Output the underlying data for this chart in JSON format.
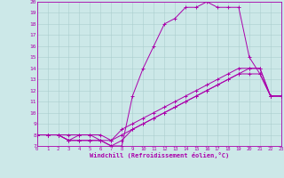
{
  "xlabel": "Windchill (Refroidissement éolien,°C)",
  "background_color": "#cce8e8",
  "line_color": "#aa00aa",
  "grid_color": "#aacece",
  "xmin": 0,
  "xmax": 23,
  "ymin": 7,
  "ymax": 20,
  "series1": {
    "x": [
      0,
      1,
      2,
      3,
      4,
      5,
      6,
      7,
      8,
      9,
      10,
      11,
      12,
      13,
      14,
      15,
      16,
      17,
      18,
      19,
      20,
      21,
      22,
      23
    ],
    "y": [
      8,
      8,
      8,
      7.5,
      7.5,
      7.5,
      7.5,
      7,
      7,
      11.5,
      14,
      16,
      18,
      18.5,
      19.5,
      19.5,
      20,
      19.5,
      19.5,
      19.5,
      15,
      13.5,
      11.5,
      11.5
    ]
  },
  "series2": {
    "x": [
      0,
      1,
      2,
      3,
      4,
      5,
      6,
      7,
      8,
      9,
      10,
      11,
      12,
      13,
      14,
      15,
      16,
      17,
      18,
      19,
      20,
      21,
      22,
      23
    ],
    "y": [
      8,
      8,
      8,
      7.5,
      8,
      8,
      8,
      7.5,
      8,
      8.5,
      9,
      9.5,
      10,
      10.5,
      11,
      11.5,
      12,
      12.5,
      13,
      13.5,
      13.5,
      13.5,
      11.5,
      11.5
    ]
  },
  "series3": {
    "x": [
      0,
      1,
      2,
      3,
      4,
      5,
      6,
      7,
      8,
      9,
      10,
      11,
      12,
      13,
      14,
      15,
      16,
      17,
      18,
      19,
      20,
      21,
      22,
      23
    ],
    "y": [
      8,
      8,
      8,
      7.5,
      7.5,
      7.5,
      7.5,
      7.5,
      8.5,
      9,
      9.5,
      10,
      10.5,
      11,
      11.5,
      12,
      12.5,
      13,
      13.5,
      14,
      14,
      14,
      11.5,
      11.5
    ]
  },
  "series4": {
    "x": [
      0,
      1,
      2,
      3,
      4,
      5,
      6,
      7,
      8,
      9,
      10,
      11,
      12,
      13,
      14,
      15,
      16,
      17,
      18,
      19,
      20,
      21,
      22,
      23
    ],
    "y": [
      8,
      8,
      8,
      8,
      8,
      8,
      7.5,
      7,
      7.5,
      8.5,
      9,
      9.5,
      10,
      10.5,
      11,
      11.5,
      12,
      12.5,
      13,
      13.5,
      14,
      14,
      11.5,
      11.5
    ]
  }
}
